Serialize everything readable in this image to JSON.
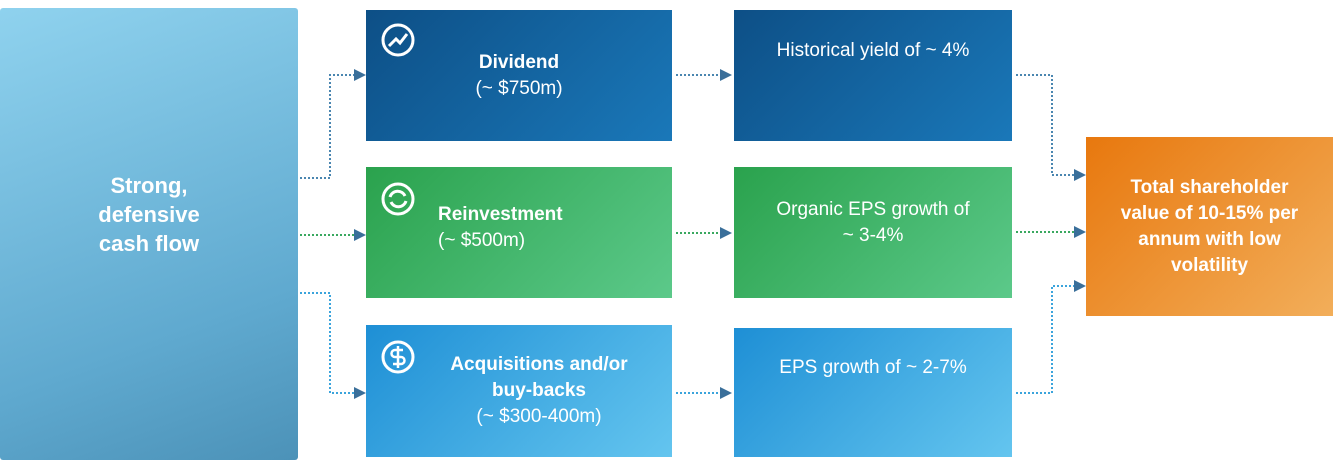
{
  "source": {
    "label": "Strong, defensive cash flow"
  },
  "branches": [
    {
      "title": "Dividend",
      "amount": "(~ $750m)",
      "outcome": "Historical yield of ~ 4%"
    },
    {
      "title": "Reinvestment",
      "amount": "(~ $500m)",
      "outcome": "Organic EPS growth of ~ 3-4%"
    },
    {
      "title": "Acquisitions and/or buy-backs",
      "amount": "(~ $300-400m)",
      "outcome": "EPS growth of ~ 2-7%"
    }
  ],
  "result": {
    "label": "Total shareholder value of 10-15% per annum with low volatility"
  }
}
